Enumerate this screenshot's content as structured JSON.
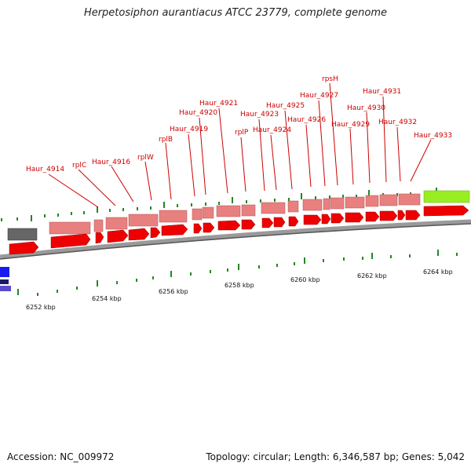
{
  "title": "Herpetosiphon aurantiacus ATCC 23779, complete genome",
  "footer": {
    "accession": "Accession: NC_009972",
    "summary": "Topology: circular; Length: 6,346,587 bp; Genes: 5,042"
  },
  "colors": {
    "label_red": "#cc0000",
    "gene_red": "#ee0000",
    "gene_pink": "#e88080",
    "gene_grey": "#666666",
    "gene_green": "#99ee22",
    "gene_blue": "#1a1aee",
    "tick_green": "#228822"
  },
  "scale_labels": [
    "6252 kbp",
    "6254 kbp",
    "6256 kbp",
    "6258 kbp",
    "6260 kbp",
    "6262 kbp",
    "6264 kbp"
  ],
  "gene_labels": [
    "Haur_4914",
    "rplC",
    "Haur_4916",
    "rplW",
    "rplB",
    "Haur_4919",
    "Haur_4920",
    "Haur_4921",
    "rplP",
    "Haur_4923",
    "Haur_4924",
    "Haur_4925",
    "Haur_4926",
    "Haur_4927",
    "rpsH",
    "Haur_4929",
    "Haur_4930",
    "Haur_4931",
    "Haur_4932",
    "Haur_4933"
  ]
}
